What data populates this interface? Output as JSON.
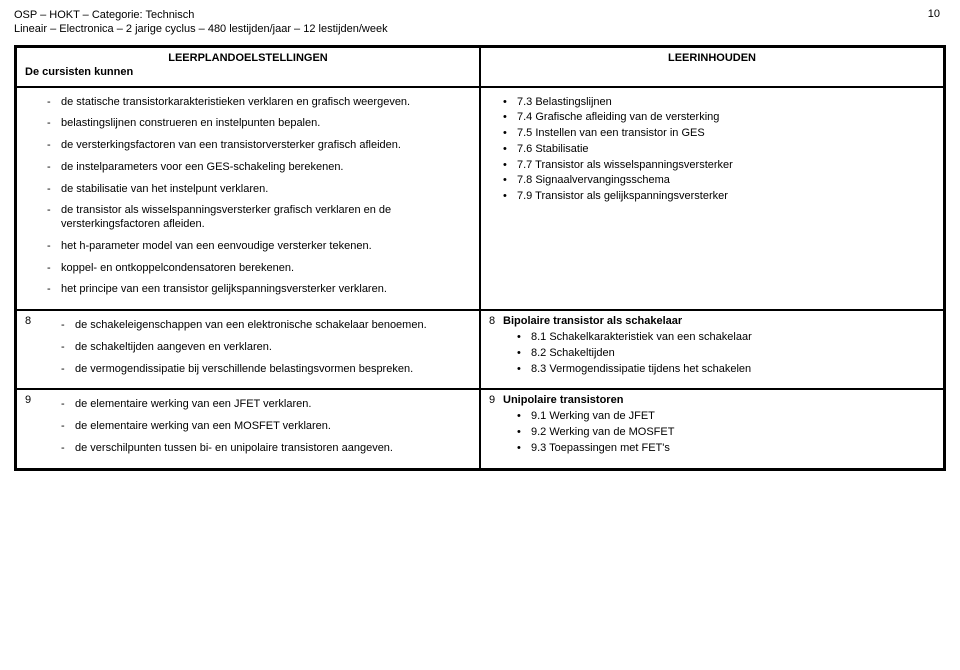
{
  "header": {
    "line1": "OSP – HOKT – Categorie: Technisch",
    "line2": "Lineair – Electronica – 2 jarige cyclus – 480 lestijden/jaar – 12 lestijden/week",
    "page_number": "10"
  },
  "columns": {
    "left_heading": "LEERPLANDOELSTELLINGEN",
    "left_sub": "De cursisten kunnen",
    "right_heading": "LEERINHOUDEN"
  },
  "section7": {
    "left_items": [
      "de statische transistorkarakteristieken verklaren en grafisch weergeven.",
      "belastingslijnen construeren en instelpunten bepalen.",
      "de versterkingsfactoren van een transistorversterker grafisch afleiden.",
      "de instelparameters voor een GES-schakeling berekenen.",
      "de stabilisatie van het instelpunt verklaren.",
      "de transistor als wisselspanningsversterker grafisch verklaren en de versterkingsfactoren afleiden.",
      "het h-parameter model van een eenvoudige versterker tekenen.",
      "koppel- en ontkoppelcondensatoren berekenen.",
      "het principe van een transistor gelijkspanningsversterker verklaren."
    ],
    "right_items": [
      "7.3 Belastingslijnen",
      "7.4 Grafische afleiding van de versterking",
      "7.5 Instellen van een transistor in GES",
      "7.6 Stabilisatie",
      "7.7 Transistor als wisselspanningsversterker",
      "7.8 Signaalvervangingsschema",
      "7.9 Transistor als gelijkspanningsversterker"
    ]
  },
  "section8": {
    "left_num": "8",
    "left_items": [
      "de schakeleigenschappen van een elektronische schakelaar benoemen.",
      "de schakeltijden aangeven en verklaren.",
      "de vermogendissipatie bij verschillende belastingsvormen bespreken."
    ],
    "right_num": "8",
    "right_title": "Bipolaire transistor als schakelaar",
    "right_items": [
      "8.1 Schakelkarakteristiek van een schakelaar",
      "8.2 Schakeltijden",
      "8.3 Vermogendissipatie tijdens het schakelen"
    ]
  },
  "section9": {
    "left_num": "9",
    "left_items": [
      "de elementaire werking van een JFET verklaren.",
      "de elementaire werking van een MOSFET verklaren.",
      "de verschilpunten tussen bi- en unipolaire transistoren aangeven."
    ],
    "right_num": "9",
    "right_title": "Unipolaire transistoren",
    "right_items": [
      "9.1 Werking van de JFET",
      "9.2 Werking van de MOSFET",
      "9.3 Toepassingen met FET's"
    ]
  }
}
